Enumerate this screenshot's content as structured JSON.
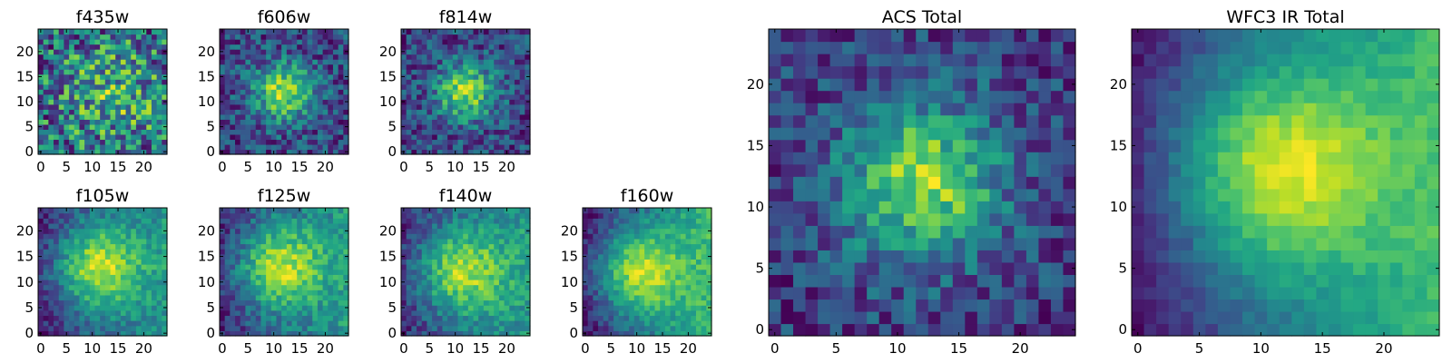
{
  "figure": {
    "description_colormap": "viridis"
  },
  "chart_data": [
    {
      "type": "heatmap",
      "name": "panel-f435w",
      "title": "f435w",
      "xlim": [
        -0.5,
        24.5
      ],
      "ylim": [
        -0.5,
        24.5
      ],
      "xticks": [
        0,
        5,
        10,
        15,
        20
      ],
      "yticks": [
        0,
        5,
        10,
        15,
        20
      ],
      "peak": {
        "x": 14,
        "y": 12,
        "sigma": 7,
        "amplitude": 0.15
      },
      "gradient": {
        "x": 0.0,
        "y": 0.0
      },
      "noise": 0.42,
      "base": 0.62,
      "seed": 11
    },
    {
      "type": "heatmap",
      "name": "panel-f606w",
      "title": "f606w",
      "xlim": [
        -0.5,
        24.5
      ],
      "ylim": [
        -0.5,
        24.5
      ],
      "xticks": [
        0,
        5,
        10,
        15,
        20
      ],
      "yticks": [
        0,
        5,
        10,
        15,
        20
      ],
      "peak": {
        "x": 12,
        "y": 12,
        "sigma": 4,
        "amplitude": 0.45
      },
      "gradient": {
        "x": 0.0,
        "y": 0.0
      },
      "noise": 0.32,
      "base": 0.42,
      "seed": 23
    },
    {
      "type": "heatmap",
      "name": "panel-f814w",
      "title": "f814w",
      "xlim": [
        -0.5,
        24.5
      ],
      "ylim": [
        -0.5,
        24.5
      ],
      "xticks": [
        0,
        5,
        10,
        15,
        20
      ],
      "yticks": [
        0,
        5,
        10,
        15,
        20
      ],
      "peak": {
        "x": 12,
        "y": 12,
        "sigma": 4,
        "amplitude": 0.48
      },
      "gradient": {
        "x": 0.0,
        "y": 0.0
      },
      "noise": 0.34,
      "base": 0.38,
      "seed": 37
    },
    {
      "type": "heatmap",
      "name": "panel-f105w",
      "title": "f105w",
      "xlim": [
        -0.5,
        24.5
      ],
      "ylim": [
        -0.5,
        24.5
      ],
      "xticks": [
        0,
        5,
        10,
        15,
        20
      ],
      "yticks": [
        0,
        5,
        10,
        15,
        20
      ],
      "peak": {
        "x": 11,
        "y": 13,
        "sigma": 6,
        "amplitude": 0.42
      },
      "gradient": {
        "x": 0.012,
        "y": 0.0
      },
      "noise": 0.18,
      "base": 0.4,
      "seed": 51
    },
    {
      "type": "heatmap",
      "name": "panel-f125w",
      "title": "f125w",
      "xlim": [
        -0.5,
        24.5
      ],
      "ylim": [
        -0.5,
        24.5
      ],
      "xticks": [
        0,
        5,
        10,
        15,
        20
      ],
      "yticks": [
        0,
        5,
        10,
        15,
        20
      ],
      "peak": {
        "x": 11,
        "y": 13,
        "sigma": 6,
        "amplitude": 0.4
      },
      "gradient": {
        "x": 0.012,
        "y": 0.0
      },
      "noise": 0.2,
      "base": 0.42,
      "seed": 67
    },
    {
      "type": "heatmap",
      "name": "panel-f140w",
      "title": "f140w",
      "xlim": [
        -0.5,
        24.5
      ],
      "ylim": [
        -0.5,
        24.5
      ],
      "xticks": [
        0,
        5,
        10,
        15,
        20
      ],
      "yticks": [
        0,
        5,
        10,
        15,
        20
      ],
      "peak": {
        "x": 11,
        "y": 12,
        "sigma": 6,
        "amplitude": 0.4
      },
      "gradient": {
        "x": 0.012,
        "y": 0.0
      },
      "noise": 0.2,
      "base": 0.42,
      "seed": 79
    },
    {
      "type": "heatmap",
      "name": "panel-f160w",
      "title": "f160w",
      "xlim": [
        -0.5,
        24.5
      ],
      "ylim": [
        -0.5,
        24.5
      ],
      "xticks": [
        0,
        5,
        10,
        15,
        20
      ],
      "yticks": [
        0,
        5,
        10,
        15,
        20
      ],
      "peak": {
        "x": 10,
        "y": 12,
        "sigma": 6,
        "amplitude": 0.36
      },
      "gradient": {
        "x": 0.016,
        "y": 0.0
      },
      "noise": 0.14,
      "base": 0.4,
      "seed": 97
    },
    {
      "type": "heatmap",
      "name": "panel-acs-total",
      "title": "ACS Total",
      "xlim": [
        -0.5,
        24.5
      ],
      "ylim": [
        -0.5,
        24.5
      ],
      "xticks": [
        0,
        5,
        10,
        15,
        20
      ],
      "yticks": [
        0,
        5,
        10,
        15,
        20
      ],
      "peak": {
        "x": 12,
        "y": 12,
        "sigma": 4.5,
        "amplitude": 0.45
      },
      "gradient": {
        "x": 0.0,
        "y": 0.0
      },
      "noise": 0.26,
      "base": 0.42,
      "seed": 131
    },
    {
      "type": "heatmap",
      "name": "panel-wfc3-ir-total",
      "title": "WFC3 IR Total",
      "xlim": [
        -0.5,
        24.5
      ],
      "ylim": [
        -0.5,
        24.5
      ],
      "xticks": [
        0,
        5,
        10,
        15,
        20
      ],
      "yticks": [
        0,
        5,
        10,
        15,
        20
      ],
      "peak": {
        "x": 11,
        "y": 13,
        "sigma": 6,
        "amplitude": 0.42
      },
      "gradient": {
        "x": 0.018,
        "y": 0.0
      },
      "noise": 0.09,
      "base": 0.38,
      "seed": 173
    }
  ]
}
